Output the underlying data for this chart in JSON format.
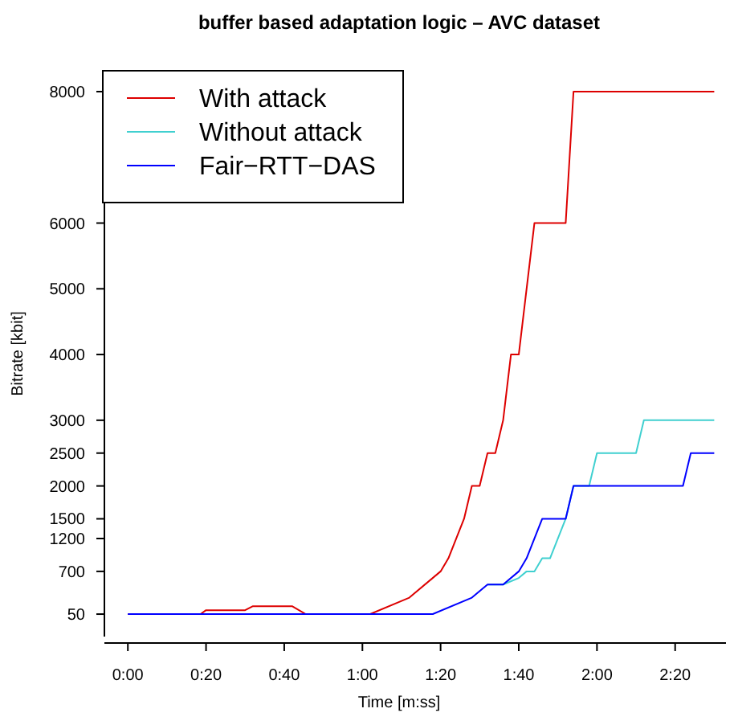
{
  "chart_data": {
    "type": "line",
    "title": "buffer based adaptation logic – AVC dataset",
    "xlabel": "Time [m:ss]",
    "ylabel": "Bitrate [kbit]",
    "xlim": [
      -6,
      153
    ],
    "ylim": [
      -292,
      8318
    ],
    "xticks": [
      {
        "value": 0,
        "label": "0:00"
      },
      {
        "value": 20,
        "label": "0:20"
      },
      {
        "value": 40,
        "label": "0:40"
      },
      {
        "value": 60,
        "label": "1:00"
      },
      {
        "value": 80,
        "label": "1:20"
      },
      {
        "value": 100,
        "label": "1:40"
      },
      {
        "value": 120,
        "label": "2:00"
      },
      {
        "value": 140,
        "label": "2:20"
      }
    ],
    "yticks": [
      50,
      700,
      1200,
      1500,
      2000,
      2500,
      3000,
      4000,
      5000,
      6000,
      8000
    ],
    "grid": false,
    "legend": "top left",
    "line_style": "solid",
    "marker": "none",
    "series": [
      {
        "name": "With attack",
        "color": "#dd0000",
        "x": [
          0,
          18.6,
          20,
          30,
          32,
          42,
          45.5,
          62,
          72,
          80,
          82,
          86,
          88,
          90,
          92,
          94,
          96,
          97,
          98,
          100,
          104,
          112,
          114,
          150
        ],
        "values": [
          50,
          50,
          110,
          110,
          170,
          170,
          50,
          50,
          300,
          700,
          900,
          1500,
          2000,
          2000,
          2500,
          2500,
          3000,
          3500,
          4000,
          4000,
          6000,
          6000,
          8000,
          8000
        ]
      },
      {
        "name": "Without attack",
        "color": "#40d0d0",
        "x": [
          92,
          96,
          100,
          102,
          104,
          106,
          108,
          112,
          114,
          118,
          120,
          130,
          132,
          150
        ],
        "values": [
          500,
          500,
          600,
          700,
          700,
          900,
          900,
          1500,
          2000,
          2000,
          2500,
          2500,
          3000,
          3000
        ]
      },
      {
        "name": "Fair−RTT−DAS",
        "color": "#0000ff",
        "x": [
          0,
          78,
          88,
          92,
          96,
          100,
          102,
          106,
          112,
          114,
          142,
          144,
          150
        ],
        "values": [
          50,
          50,
          300,
          500,
          500,
          700,
          900,
          1500,
          1500,
          2000,
          2000,
          2500,
          2500
        ]
      }
    ]
  }
}
